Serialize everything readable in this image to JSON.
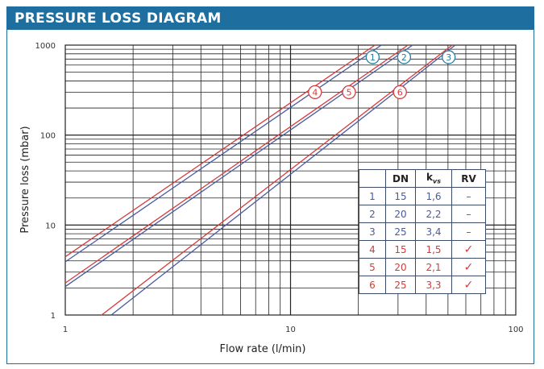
{
  "header": {
    "title": "PRESSURE LOSS DIAGRAM"
  },
  "chart_data": {
    "type": "line",
    "xlabel": "Flow rate (l/min)",
    "ylabel": "Pressure loss (mbar)",
    "xscale": "log",
    "yscale": "log",
    "xlim": [
      1,
      100
    ],
    "ylim": [
      1,
      1000
    ],
    "xticks": [
      "1",
      "10",
      "100"
    ],
    "yticks": [
      "1",
      "10",
      "100",
      "1000"
    ],
    "grid": true,
    "series": [
      {
        "name": "1",
        "kvs": 1.6,
        "color": "#4a5aa0",
        "marker": "circle-blue",
        "x": [
          1.0,
          25.3
        ],
        "y": [
          3.9,
          1000
        ]
      },
      {
        "name": "2",
        "kvs": 2.2,
        "color": "#4a5aa0",
        "marker": "circle-blue",
        "x": [
          1.0,
          34.8
        ],
        "y": [
          2.07,
          1000
        ]
      },
      {
        "name": "3",
        "kvs": 3.4,
        "color": "#4a5aa0",
        "marker": "circle-blue",
        "x": [
          1.6,
          53.8
        ],
        "y": [
          1,
          1000
        ]
      },
      {
        "name": "4",
        "kvs": 1.5,
        "color": "#d63a3a",
        "marker": "circle-red",
        "x": [
          1.0,
          23.7
        ],
        "y": [
          4.44,
          1000
        ]
      },
      {
        "name": "5",
        "kvs": 2.1,
        "color": "#d63a3a",
        "marker": "circle-red",
        "x": [
          1.0,
          33.2
        ],
        "y": [
          2.27,
          1000
        ]
      },
      {
        "name": "6",
        "kvs": 3.3,
        "color": "#d63a3a",
        "marker": "circle-red",
        "x": [
          1.45,
          52.2
        ],
        "y": [
          1,
          1000
        ]
      }
    ],
    "table": {
      "headers": [
        "",
        "DN",
        "kvs",
        "RV"
      ],
      "rows": [
        {
          "n": "1",
          "dn": "15",
          "kvs": "1,6",
          "rv": "–",
          "color": "blue"
        },
        {
          "n": "2",
          "dn": "20",
          "kvs": "2,2",
          "rv": "–",
          "color": "blue"
        },
        {
          "n": "3",
          "dn": "25",
          "kvs": "3,4",
          "rv": "–",
          "color": "blue"
        },
        {
          "n": "4",
          "dn": "15",
          "kvs": "1,5",
          "rv": "✓",
          "color": "red"
        },
        {
          "n": "5",
          "dn": "20",
          "kvs": "2,1",
          "rv": "✓",
          "color": "red"
        },
        {
          "n": "6",
          "dn": "25",
          "kvs": "3,3",
          "rv": "✓",
          "color": "red"
        }
      ]
    }
  }
}
